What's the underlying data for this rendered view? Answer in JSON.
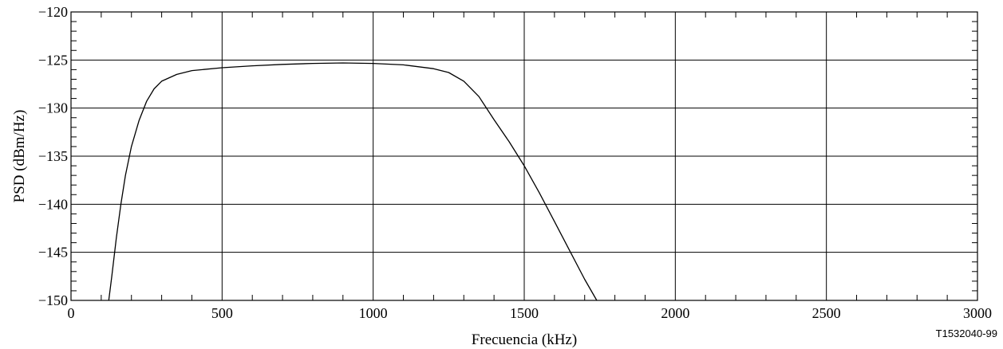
{
  "chart_data": {
    "type": "line",
    "title": "",
    "xlabel": "Frecuencia (kHz)",
    "ylabel": "PSD (dBm/Hz)",
    "xlim": [
      0,
      3000
    ],
    "ylim": [
      -150,
      -120
    ],
    "x_ticks": [
      0,
      500,
      1000,
      1500,
      2000,
      2500,
      3000
    ],
    "y_ticks": [
      -150,
      -145,
      -140,
      -135,
      -130,
      -125,
      -120
    ],
    "x_tick_labels": [
      "0",
      "500",
      "1000",
      "1500",
      "2000",
      "2500",
      "3000"
    ],
    "y_tick_labels": [
      "−150",
      "−145",
      "−140",
      "−135",
      "−130",
      "−125",
      "−120"
    ],
    "grid": true,
    "legend": "none",
    "line_color": "#000000",
    "series": [
      {
        "x": [
          125,
          135,
          150,
          165,
          180,
          200,
          225,
          250,
          275,
          300,
          350,
          400,
          500,
          600,
          700,
          800,
          900,
          1000,
          1100,
          1200,
          1250,
          1300,
          1350,
          1400,
          1450,
          1500,
          1550,
          1600,
          1650,
          1700,
          1740
        ],
        "y": [
          -150,
          -147.5,
          -143.5,
          -140,
          -137,
          -134,
          -131.3,
          -129.3,
          -128,
          -127.2,
          -126.5,
          -126.1,
          -125.8,
          -125.6,
          -125.45,
          -125.35,
          -125.3,
          -125.35,
          -125.5,
          -125.9,
          -126.3,
          -127.2,
          -128.8,
          -131.2,
          -133.5,
          -136,
          -138.8,
          -141.8,
          -144.8,
          -147.8,
          -150
        ]
      }
    ],
    "figure_id": "T1532040-99"
  }
}
